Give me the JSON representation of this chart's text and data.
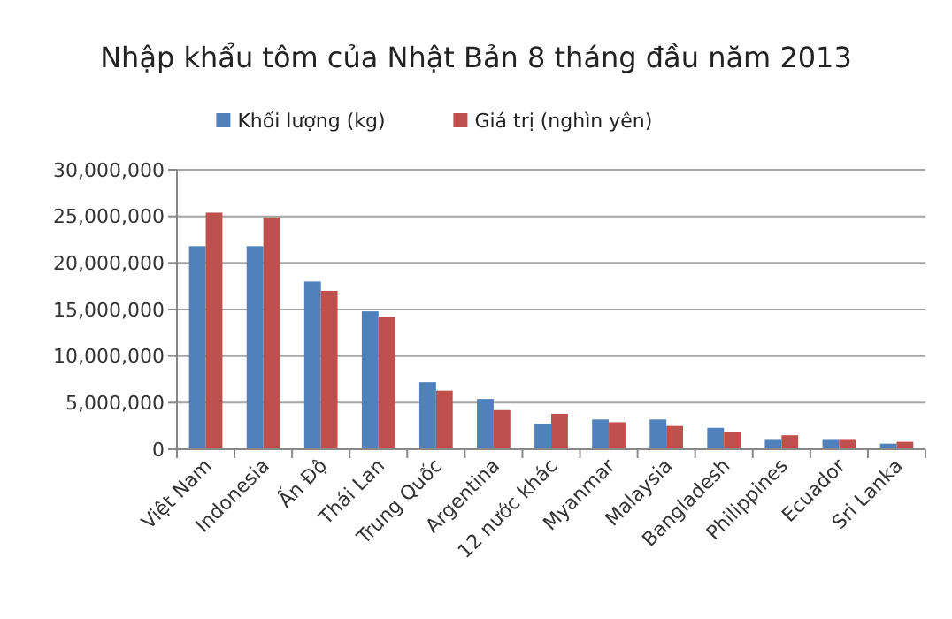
{
  "chart_data": {
    "type": "bar",
    "title": "Nhập khẩu tôm của Nhật Bản 8 tháng đầu năm 2013",
    "categories": [
      "Việt Nam",
      "Indonesia",
      "Ấn Độ",
      "Thái Lan",
      "Trung Quốc",
      "Argentina",
      "12 nước khác",
      "Myanmar",
      "Malaysia",
      "Bangladesh",
      "Philippines",
      "Ecuador",
      "Sri Lanka"
    ],
    "series": [
      {
        "name": "Khối lượng (kg)",
        "color": "#4f81bd",
        "values": [
          21800000,
          21800000,
          18000000,
          14800000,
          7200000,
          5400000,
          2700000,
          3200000,
          3200000,
          2300000,
          1000000,
          1000000,
          600000
        ]
      },
      {
        "name": "Giá trị (nghìn yên)",
        "color": "#c0504d",
        "values": [
          25400000,
          24900000,
          17000000,
          14200000,
          6300000,
          4200000,
          3800000,
          2900000,
          2500000,
          1900000,
          1500000,
          1000000,
          800000
        ]
      }
    ],
    "ylim": [
      0,
      30000000
    ],
    "yticks": [
      {
        "value": 0,
        "label": "0"
      },
      {
        "value": 5000000,
        "label": "5,000,000"
      },
      {
        "value": 10000000,
        "label": "10,000,000"
      },
      {
        "value": 15000000,
        "label": "15,000,000"
      },
      {
        "value": 20000000,
        "label": "20,000,000"
      },
      {
        "value": 25000000,
        "label": "25,000,000"
      },
      {
        "value": 30000000,
        "label": "30,000,000"
      }
    ],
    "grid": "y",
    "legend": "top"
  }
}
